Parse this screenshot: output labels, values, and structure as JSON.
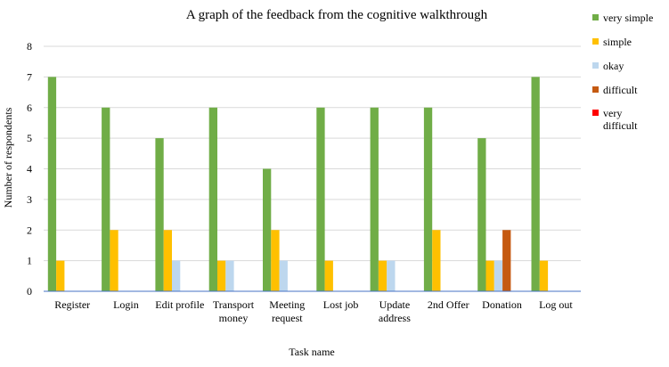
{
  "chart_data": {
    "type": "bar",
    "title": "A graph of the feedback from the cognitive walkthrough",
    "xlabel": "Task name",
    "ylabel": "Number of respondents",
    "ylim": [
      0,
      8
    ],
    "yticks": [
      0,
      1,
      2,
      3,
      4,
      5,
      6,
      7,
      8
    ],
    "grid": true,
    "legend_position": "right",
    "categories": [
      [
        "Register"
      ],
      [
        "Login"
      ],
      [
        "Edit profile"
      ],
      [
        "Transport",
        "money"
      ],
      [
        "Meeting",
        "request"
      ],
      [
        "Lost job"
      ],
      [
        "Update",
        "address"
      ],
      [
        "2nd Offer"
      ],
      [
        "Donation"
      ],
      [
        "Log out"
      ]
    ],
    "series": [
      {
        "name": "very simple",
        "legend_lines": [
          "very simple"
        ],
        "color": "#70ad47",
        "values": [
          7,
          6,
          5,
          6,
          4,
          6,
          6,
          6,
          5,
          7
        ]
      },
      {
        "name": "simple",
        "legend_lines": [
          "simple"
        ],
        "color": "#ffc000",
        "values": [
          1,
          2,
          2,
          1,
          2,
          1,
          1,
          2,
          1,
          1
        ]
      },
      {
        "name": "okay",
        "legend_lines": [
          "okay"
        ],
        "color": "#bdd7ee",
        "values": [
          0,
          0,
          1,
          1,
          1,
          0,
          1,
          0,
          1,
          0
        ]
      },
      {
        "name": "difficult",
        "legend_lines": [
          "difficult"
        ],
        "color": "#c55a11",
        "values": [
          0,
          0,
          0,
          0,
          0,
          0,
          0,
          0,
          2,
          0
        ]
      },
      {
        "name": "very difficult",
        "legend_lines": [
          "very",
          "difficult"
        ],
        "color": "#ff0000",
        "values": [
          0,
          0,
          0,
          0,
          0,
          0,
          0,
          0,
          0,
          0
        ]
      }
    ]
  }
}
